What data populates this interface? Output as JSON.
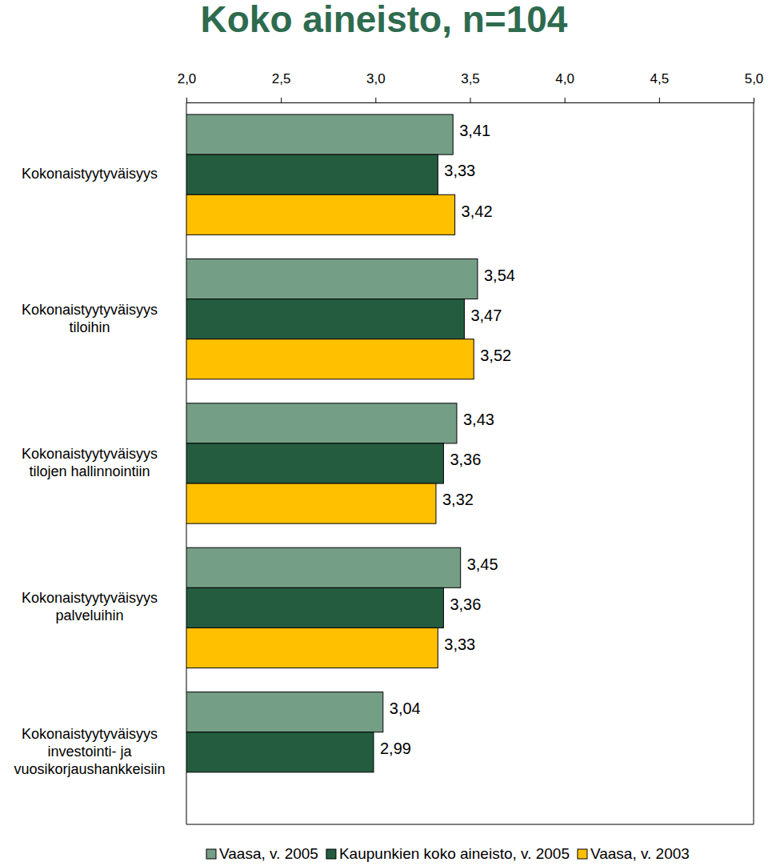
{
  "chart_data": {
    "type": "bar",
    "orientation": "horizontal",
    "title": "Koko aineisto, n=104",
    "categories": [
      "Kokonaistyytyväisyys",
      "Kokonaistyytyväisyys\ntiloihin",
      "Kokonaistyytyväisyys\ntilojen hallinnointiin",
      "Kokonaistyytyväisyys\npalveluihin",
      "Kokonaistyytyväisyys\ninvestointi- ja\nvuosikorjaushankkeisiin"
    ],
    "series": [
      {
        "name": "Vaasa, v. 2005",
        "color": "#759e87",
        "values": [
          3.41,
          3.54,
          3.43,
          3.45,
          3.04
        ],
        "value_labels": [
          "3,41",
          "3,54",
          "3,43",
          "3,45",
          "3,04"
        ]
      },
      {
        "name": "Kaupunkien koko aineisto, v. 2005",
        "color": "#245c40",
        "values": [
          3.33,
          3.47,
          3.36,
          3.36,
          2.99
        ],
        "value_labels": [
          "3,33",
          "3,47",
          "3,36",
          "3,36",
          "2,99"
        ]
      },
      {
        "name": "Vaasa, v. 2003",
        "color": "#ffc000",
        "values": [
          3.42,
          3.52,
          3.32,
          3.33,
          null
        ],
        "value_labels": [
          "3,42",
          "3,52",
          "3,32",
          "3,33",
          null
        ]
      }
    ],
    "xlim": [
      2.0,
      5.0
    ],
    "xticks": [
      {
        "value": 2.0,
        "label": "2,0"
      },
      {
        "value": 2.5,
        "label": "2,5"
      },
      {
        "value": 3.0,
        "label": "3,0"
      },
      {
        "value": 3.5,
        "label": "3,5"
      },
      {
        "value": 4.0,
        "label": "4,0"
      },
      {
        "value": 4.5,
        "label": "4,5"
      },
      {
        "value": 5.0,
        "label": "5,0"
      }
    ],
    "grid": false,
    "legend": "bottom",
    "data_labels": true
  }
}
